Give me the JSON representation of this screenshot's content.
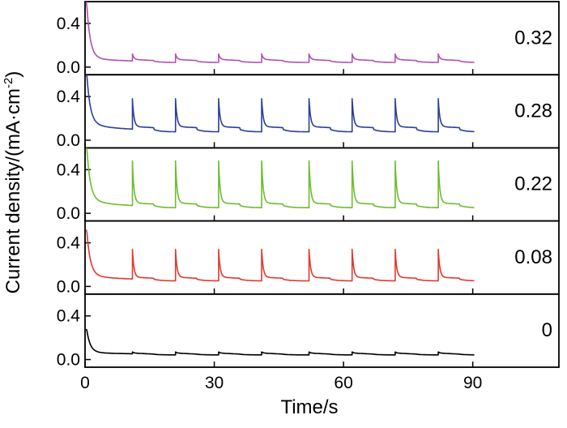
{
  "chart_data": {
    "type": "line",
    "xlabel": "Time/s",
    "ylabel_main": "Current density/(mA·cm",
    "ylabel_sup": "-2",
    "ylabel_end": ")",
    "xlim": [
      0,
      110
    ],
    "x_ticks": [
      0,
      30,
      60,
      90
    ],
    "x_tick_labels": [
      "0",
      "30",
      "60",
      "90"
    ],
    "y_ticks": [
      0.0,
      0.4
    ],
    "y_tick_labels": [
      "0.0",
      "0.4"
    ],
    "panels": [
      {
        "name": "0.32",
        "label": "0.32",
        "color": "#b04fb0",
        "ylim": [
          -0.07,
          0.6
        ],
        "peak": 0.6,
        "base": 0.05,
        "spike": 0.12,
        "tail": 0.04,
        "spike_times": [
          11,
          21,
          31,
          41,
          52,
          62,
          72,
          82
        ],
        "start": 0.3
      },
      {
        "name": "0.28",
        "label": "0.28",
        "color": "#2e3d99",
        "ylim": [
          -0.07,
          0.6
        ],
        "peak": 0.6,
        "base": 0.09,
        "spike": 0.38,
        "tail": 0.07,
        "spike_times": [
          11,
          21,
          31,
          41,
          52,
          62,
          72,
          82
        ],
        "start": 0.3
      },
      {
        "name": "0.22",
        "label": "0.22",
        "color": "#6cbd2e",
        "ylim": [
          -0.07,
          0.6
        ],
        "peak": 0.6,
        "base": 0.06,
        "spike": 0.48,
        "tail": 0.07,
        "spike_times": [
          11,
          21,
          31,
          41,
          52,
          62,
          72,
          82
        ],
        "start": 0.3
      },
      {
        "name": "0.08",
        "label": "0.08",
        "color": "#e03a2f",
        "ylim": [
          -0.07,
          0.6
        ],
        "peak": 0.52,
        "base": 0.06,
        "spike": 0.34,
        "tail": 0.05,
        "spike_times": [
          11,
          21,
          31,
          41,
          52,
          62,
          72,
          82
        ],
        "start": 0.3
      },
      {
        "name": "0",
        "label": "0",
        "color": "#000000",
        "ylim": [
          -0.07,
          0.6
        ],
        "peak": 0.28,
        "base": 0.05,
        "spike": 0.07,
        "tail": 0.02,
        "spike_times": [
          11,
          21,
          31,
          41,
          52,
          62,
          72,
          82
        ],
        "start": 0.3
      }
    ]
  }
}
